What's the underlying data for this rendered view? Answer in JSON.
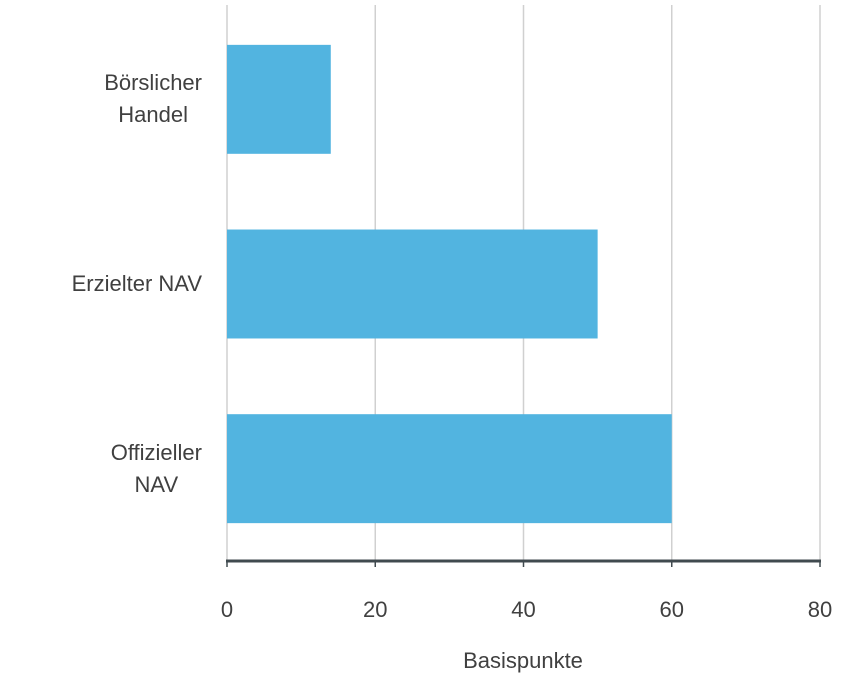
{
  "chart_data": {
    "type": "bar",
    "orientation": "horizontal",
    "categories": [
      "Börslicher\nHandel",
      "Erzielter NAV",
      "Offizieller\nNAV"
    ],
    "values": [
      14,
      50,
      60
    ],
    "color": "#52b4e0",
    "xlim": [
      0,
      80
    ],
    "xticks": [
      0,
      20,
      40,
      60,
      80
    ],
    "grid": true,
    "xlabel": "Basispunkte"
  }
}
